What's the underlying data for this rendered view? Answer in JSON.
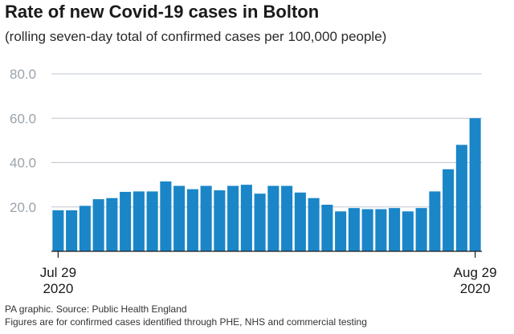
{
  "title": "Rate of new Covid-19 cases in Bolton",
  "subtitle": "(rolling seven-day total of confirmed cases per 100,000 people)",
  "footer": {
    "source": "PA graphic. Source: Public Health England",
    "note": "Figures are for confirmed cases identified through PHE, NHS and commercial testing"
  },
  "colors": {
    "bar": "#1a86c8",
    "grid": "#c0c7cf",
    "axis": "#1a1a1a",
    "tick_label": "#9aa3ab"
  },
  "chart_data": {
    "type": "bar",
    "title": "Rate of new Covid-19 cases in Bolton",
    "subtitle": "(rolling seven-day total of confirmed cases per 100,000 people)",
    "xlabel": "",
    "ylabel": "",
    "ylim": [
      0,
      80
    ],
    "yticks": [
      "20.0",
      "40.0",
      "60.0",
      "80.0"
    ],
    "x_tick_labels": [
      {
        "line1": "Jul 29",
        "line2": "2020",
        "index": 0
      },
      {
        "line1": "Aug 29",
        "line2": "2020",
        "index": 31
      }
    ],
    "grid": true,
    "values": [
      18.5,
      18.5,
      20.5,
      23.5,
      24.0,
      26.8,
      27.0,
      27.0,
      31.5,
      29.5,
      28.0,
      29.5,
      27.5,
      29.5,
      30.0,
      26.0,
      29.5,
      29.5,
      26.5,
      24.0,
      21.0,
      18.0,
      19.5,
      19.0,
      19.0,
      19.5,
      18.0,
      19.5,
      27.0,
      37.0,
      48.0,
      60.0
    ]
  }
}
